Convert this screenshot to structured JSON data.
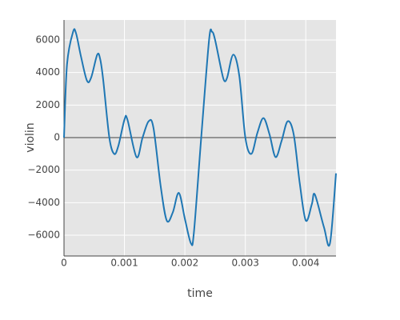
{
  "chart_data": {
    "type": "line",
    "x_label": "time",
    "y_label": "violin",
    "x": [
      0,
      5e-05,
      0.00015,
      0.0002,
      0.00028,
      0.00038,
      0.00045,
      0.00055,
      0.0006,
      0.00065,
      0.00075,
      0.00083,
      0.0009,
      0.001,
      0.00105,
      0.0012,
      0.0013,
      0.0014,
      0.00148,
      0.0016,
      0.0017,
      0.0018,
      0.0019,
      0.002,
      0.0021,
      0.00215,
      0.00227,
      0.0024,
      0.00245,
      0.0025,
      0.0026,
      0.00265,
      0.0027,
      0.0028,
      0.0029,
      0.003,
      0.0031,
      0.0032,
      0.0033,
      0.0034,
      0.0035,
      0.0036,
      0.0037,
      0.0038,
      0.0039,
      0.004,
      0.0041,
      0.00415,
      0.0043,
      0.0044,
      0.0045
    ],
    "series": [
      {
        "name": "violin",
        "color": "#1f77b4",
        "values": [
          0,
          4500,
          6500,
          6400,
          5000,
          3500,
          3700,
          5100,
          4800,
          3500,
          0,
          -1000,
          -500,
          1100,
          1100,
          -1200,
          0,
          1000,
          600,
          -3000,
          -5100,
          -4600,
          -3400,
          -5000,
          -6500,
          -5800,
          0,
          6000,
          6500,
          6000,
          4200,
          3500,
          3700,
          5100,
          3800,
          0,
          -1000,
          300,
          1200,
          200,
          -1200,
          -200,
          1000,
          200,
          -2800,
          -5100,
          -4100,
          -3500,
          -5500,
          -6500,
          -2200
        ]
      }
    ],
    "xlim": [
      0,
      0.0045
    ],
    "ylim": [
      -7280,
      7230
    ],
    "xticks": [
      0,
      0.001,
      0.002,
      0.003,
      0.004
    ],
    "yticks": [
      {
        "value": -6000,
        "label": "−6000"
      },
      {
        "value": -4000,
        "label": "−4000"
      },
      {
        "value": -2000,
        "label": "−2000"
      },
      0,
      2000,
      4000,
      6000
    ],
    "grid": true
  }
}
